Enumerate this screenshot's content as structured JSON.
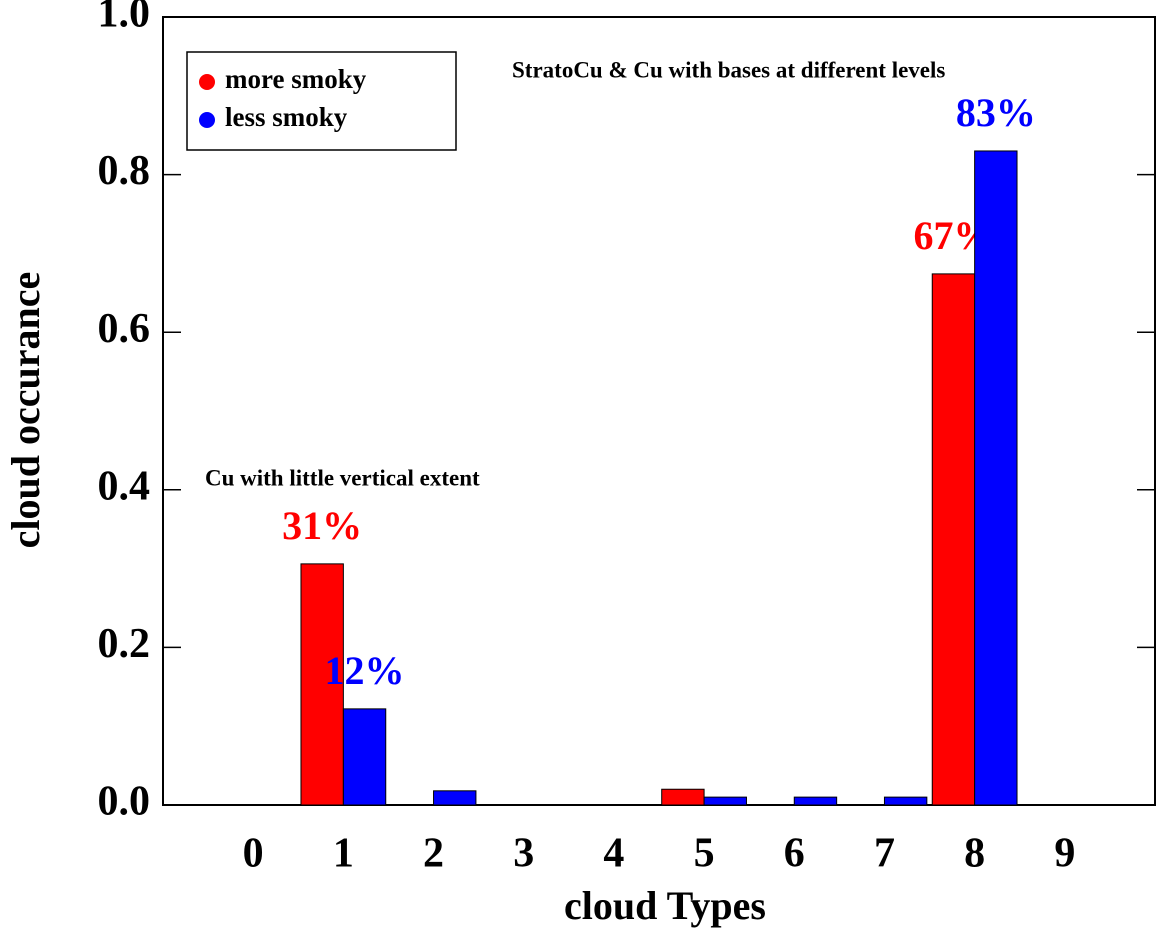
{
  "chart_data": {
    "type": "bar",
    "x_label": "cloud Types",
    "y_label": "cloud occurance",
    "annotations": [
      "StratoCu & Cu with bases at different levels",
      "Cu with little vertical extent"
    ],
    "x": [
      0,
      1,
      2,
      3,
      4,
      5,
      6,
      7,
      8,
      9
    ],
    "xlim": [
      -1,
      10
    ],
    "xticks": [
      0,
      1,
      2,
      3,
      4,
      5,
      6,
      7,
      8,
      9
    ],
    "ylim": [
      0,
      1
    ],
    "yticks": [
      {
        "value": 0,
        "label": "0.0"
      },
      0.2,
      0.4,
      0.6,
      0.8,
      {
        "value": 1,
        "label": "1.0"
      }
    ],
    "legend_position": "upper left",
    "series": [
      {
        "name": "more smoky",
        "color": "#ff0000",
        "values": [
          0,
          0.306,
          0,
          0,
          0,
          0.02,
          0,
          0,
          0.674,
          0
        ],
        "value_labels": [
          null,
          "31%",
          null,
          null,
          null,
          null,
          null,
          null,
          "67%",
          null
        ]
      },
      {
        "name": "less smoky",
        "color": "#0000ff",
        "values": [
          0,
          0.122,
          0.018,
          0,
          0,
          0.01,
          0.01,
          0.01,
          0.83,
          0
        ],
        "value_labels": [
          null,
          "12%",
          null,
          null,
          null,
          null,
          null,
          null,
          "83%",
          null
        ]
      }
    ]
  }
}
